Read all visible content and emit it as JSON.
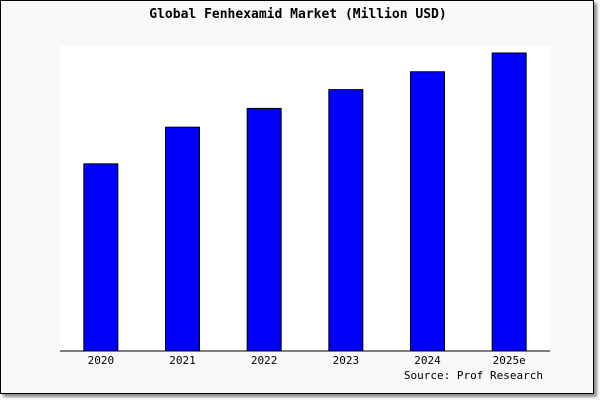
{
  "chart_data": {
    "type": "bar",
    "title": "Global Fenhexamid Market (Million USD)",
    "categories": [
      "2020",
      "2021",
      "2022",
      "2023",
      "2024",
      "2025e"
    ],
    "values": [
      62.8,
      75.1,
      81.4,
      87.7,
      93.7,
      100
    ],
    "value_note_unit": "relative index, 2025e = 100 (no y-axis printed)",
    "xlabel": "",
    "ylabel": "",
    "ylim": [
      0,
      101
    ],
    "grid": false,
    "legend": "none",
    "bar_color": "#0000ff",
    "source": "Source: Prof Research"
  }
}
